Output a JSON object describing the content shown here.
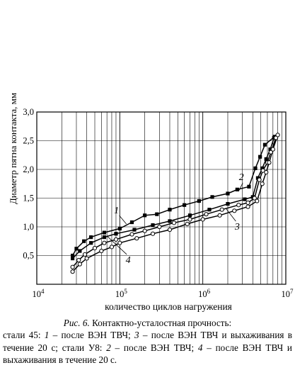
{
  "chart_data": {
    "type": "line",
    "xscale": "log",
    "xlim": [
      10000,
      10000000
    ],
    "ylim": [
      0,
      3.0
    ],
    "xlabel": "количество циклов нагружения",
    "ylabel": "Диаметр пятна контакта, мм",
    "xtick_labels": [
      {
        "base": "10",
        "exp": "4"
      },
      {
        "base": "10",
        "exp": "5"
      },
      {
        "base": "10",
        "exp": "6"
      },
      {
        "base": "10",
        "exp": "7"
      }
    ],
    "yticks": [
      0.5,
      1.0,
      1.5,
      2.0,
      2.5,
      3.0
    ],
    "ytick_labels": [
      "0,5",
      "1,0",
      "1,5",
      "2,0",
      "2,5",
      "3,0"
    ],
    "grid": true,
    "series": [
      {
        "name": "1",
        "marker": "square-filled",
        "points": [
          [
            27000,
            0.45
          ],
          [
            33000,
            0.58
          ],
          [
            45000,
            0.72
          ],
          [
            65000,
            0.82
          ],
          [
            90000,
            0.88
          ],
          [
            150000,
            0.95
          ],
          [
            250000,
            1.03
          ],
          [
            400000,
            1.1
          ],
          [
            700000,
            1.2
          ],
          [
            1200000,
            1.3
          ],
          [
            2000000,
            1.4
          ],
          [
            3200000,
            1.48
          ],
          [
            4000000,
            1.52
          ],
          [
            4600000,
            1.85
          ],
          [
            5200000,
            2.02
          ],
          [
            5800000,
            2.18
          ],
          [
            6500000,
            2.35
          ],
          [
            7200000,
            2.55
          ]
        ]
      },
      {
        "name": "2",
        "marker": "square-filled",
        "points": [
          [
            27000,
            0.5
          ],
          [
            30000,
            0.62
          ],
          [
            37000,
            0.75
          ],
          [
            45000,
            0.82
          ],
          [
            65000,
            0.9
          ],
          [
            100000,
            0.97
          ],
          [
            140000,
            1.08
          ],
          [
            200000,
            1.2
          ],
          [
            280000,
            1.22
          ],
          [
            400000,
            1.3
          ],
          [
            600000,
            1.38
          ],
          [
            900000,
            1.45
          ],
          [
            1300000,
            1.52
          ],
          [
            2000000,
            1.58
          ],
          [
            2600000,
            1.65
          ],
          [
            3600000,
            1.7
          ],
          [
            4300000,
            2.02
          ],
          [
            4900000,
            2.22
          ],
          [
            5600000,
            2.43
          ],
          [
            7300000,
            2.57
          ]
        ]
      },
      {
        "name": "3",
        "marker": "circle-open",
        "points": [
          [
            27000,
            0.3
          ],
          [
            32000,
            0.42
          ],
          [
            38000,
            0.52
          ],
          [
            50000,
            0.63
          ],
          [
            65000,
            0.72
          ],
          [
            90000,
            0.78
          ],
          [
            140000,
            0.87
          ],
          [
            200000,
            0.93
          ],
          [
            300000,
            1.0
          ],
          [
            450000,
            1.07
          ],
          [
            700000,
            1.13
          ],
          [
            1100000,
            1.22
          ],
          [
            1700000,
            1.3
          ],
          [
            2700000,
            1.38
          ],
          [
            3500000,
            1.42
          ],
          [
            4200000,
            1.5
          ],
          [
            4800000,
            1.82
          ],
          [
            5300000,
            1.98
          ],
          [
            6000000,
            2.12
          ],
          [
            6600000,
            2.3
          ],
          [
            7600000,
            2.55
          ]
        ]
      },
      {
        "name": "4",
        "marker": "circle-open",
        "points": [
          [
            27000,
            0.22
          ],
          [
            33000,
            0.35
          ],
          [
            40000,
            0.45
          ],
          [
            60000,
            0.58
          ],
          [
            80000,
            0.65
          ],
          [
            100000,
            0.72
          ],
          [
            160000,
            0.8
          ],
          [
            250000,
            0.88
          ],
          [
            400000,
            0.95
          ],
          [
            650000,
            1.05
          ],
          [
            1000000,
            1.13
          ],
          [
            1600000,
            1.2
          ],
          [
            2400000,
            1.28
          ],
          [
            3500000,
            1.35
          ],
          [
            4500000,
            1.45
          ],
          [
            5200000,
            1.75
          ],
          [
            5800000,
            1.95
          ],
          [
            6300000,
            2.12
          ],
          [
            7000000,
            2.35
          ],
          [
            8000000,
            2.6
          ]
        ]
      }
    ],
    "annotations": [
      {
        "text": "1",
        "anchor": [
          120000,
          1.05
        ]
      },
      {
        "text": "2",
        "anchor": [
          2700000,
          1.62
        ]
      },
      {
        "text": "3",
        "anchor": [
          1900000,
          1.32
        ]
      },
      {
        "text": "4",
        "anchor": [
          70000,
          0.84
        ]
      }
    ]
  },
  "caption": {
    "fig": "Рис. 6.",
    "title": " Контактно-усталостная прочность:",
    "parts": [
      {
        "t": "стали 45: ",
        "i": false
      },
      {
        "t": "1",
        "i": true
      },
      {
        "t": " – после ВЭН ТВЧ; ",
        "i": false
      },
      {
        "t": "3",
        "i": true
      },
      {
        "t": " – после ВЭН ТВЧ и выхаживания в течение 20 с; стали У8: ",
        "i": false
      },
      {
        "t": "2",
        "i": true
      },
      {
        "t": " – после ВЭН ТВЧ; ",
        "i": false
      },
      {
        "t": "4",
        "i": true
      },
      {
        "t": " – после ВЭН ТВЧ и выхаживания в течение 20 с.",
        "i": false
      }
    ]
  }
}
